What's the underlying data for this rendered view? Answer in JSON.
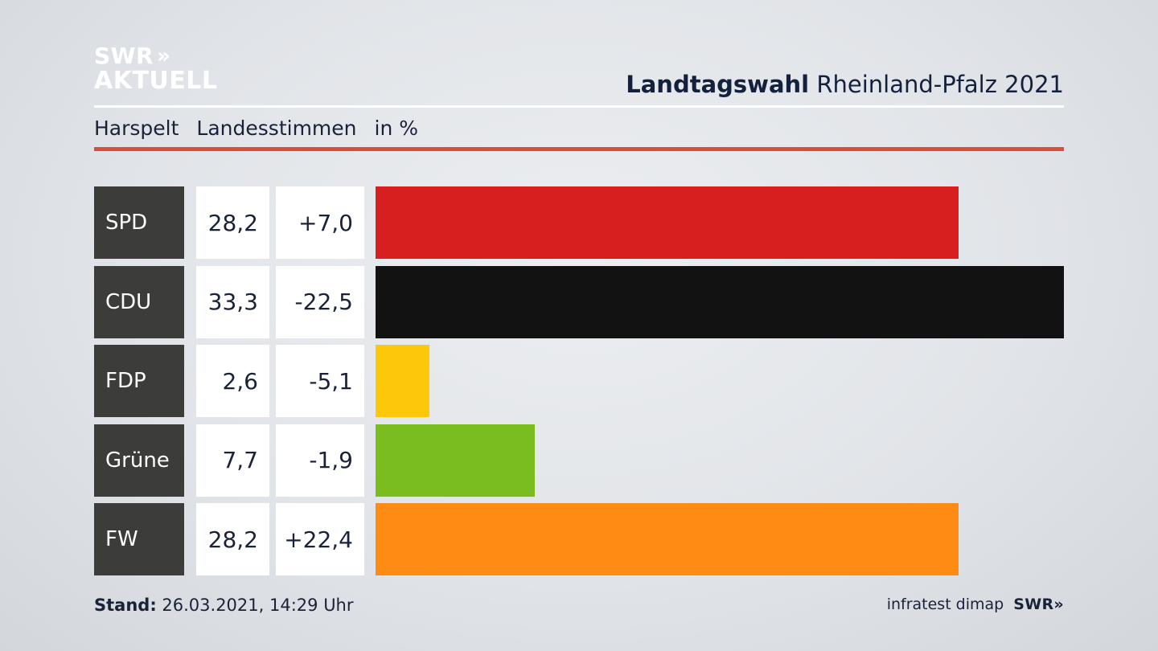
{
  "logo": {
    "line1": "SWR",
    "chevrons": "»",
    "line2": "AKTUELL"
  },
  "header": {
    "title_bold": "Landtagswahl",
    "title_rest": "Rheinland-Pfalz 2021"
  },
  "subhead": {
    "place": "Harspelt",
    "metric": "Landesstimmen",
    "unit": "in %"
  },
  "footer": {
    "stand_label": "Stand:",
    "stand_value": "26.03.2021, 14:29 Uhr",
    "source": "infratest dimap",
    "brand": "SWR",
    "brand_chevrons": "»"
  },
  "colors": {
    "SPD": "#d81f1f",
    "CDU": "#121212",
    "FDP": "#fdc80a",
    "Grüne": "#79bd1e",
    "FW": "#fd8b14"
  },
  "chart_data": {
    "type": "bar",
    "orientation": "horizontal",
    "categories": [
      "SPD",
      "CDU",
      "FDP",
      "Grüne",
      "FW"
    ],
    "series": [
      {
        "values": [
          28.2,
          33.3,
          2.6,
          7.7,
          28.2
        ],
        "labels": [
          "28,2",
          "33,3",
          "2,6",
          "7,7",
          "28,2"
        ]
      }
    ],
    "differences": [
      7.0,
      -22.5,
      -5.1,
      -1.9,
      22.4
    ],
    "difference_labels": [
      "+7,0",
      "-22,5",
      "-5,1",
      "-1,9",
      "+22,4"
    ],
    "xlim": [
      0,
      33.3
    ],
    "grid": false,
    "legend": "none"
  }
}
